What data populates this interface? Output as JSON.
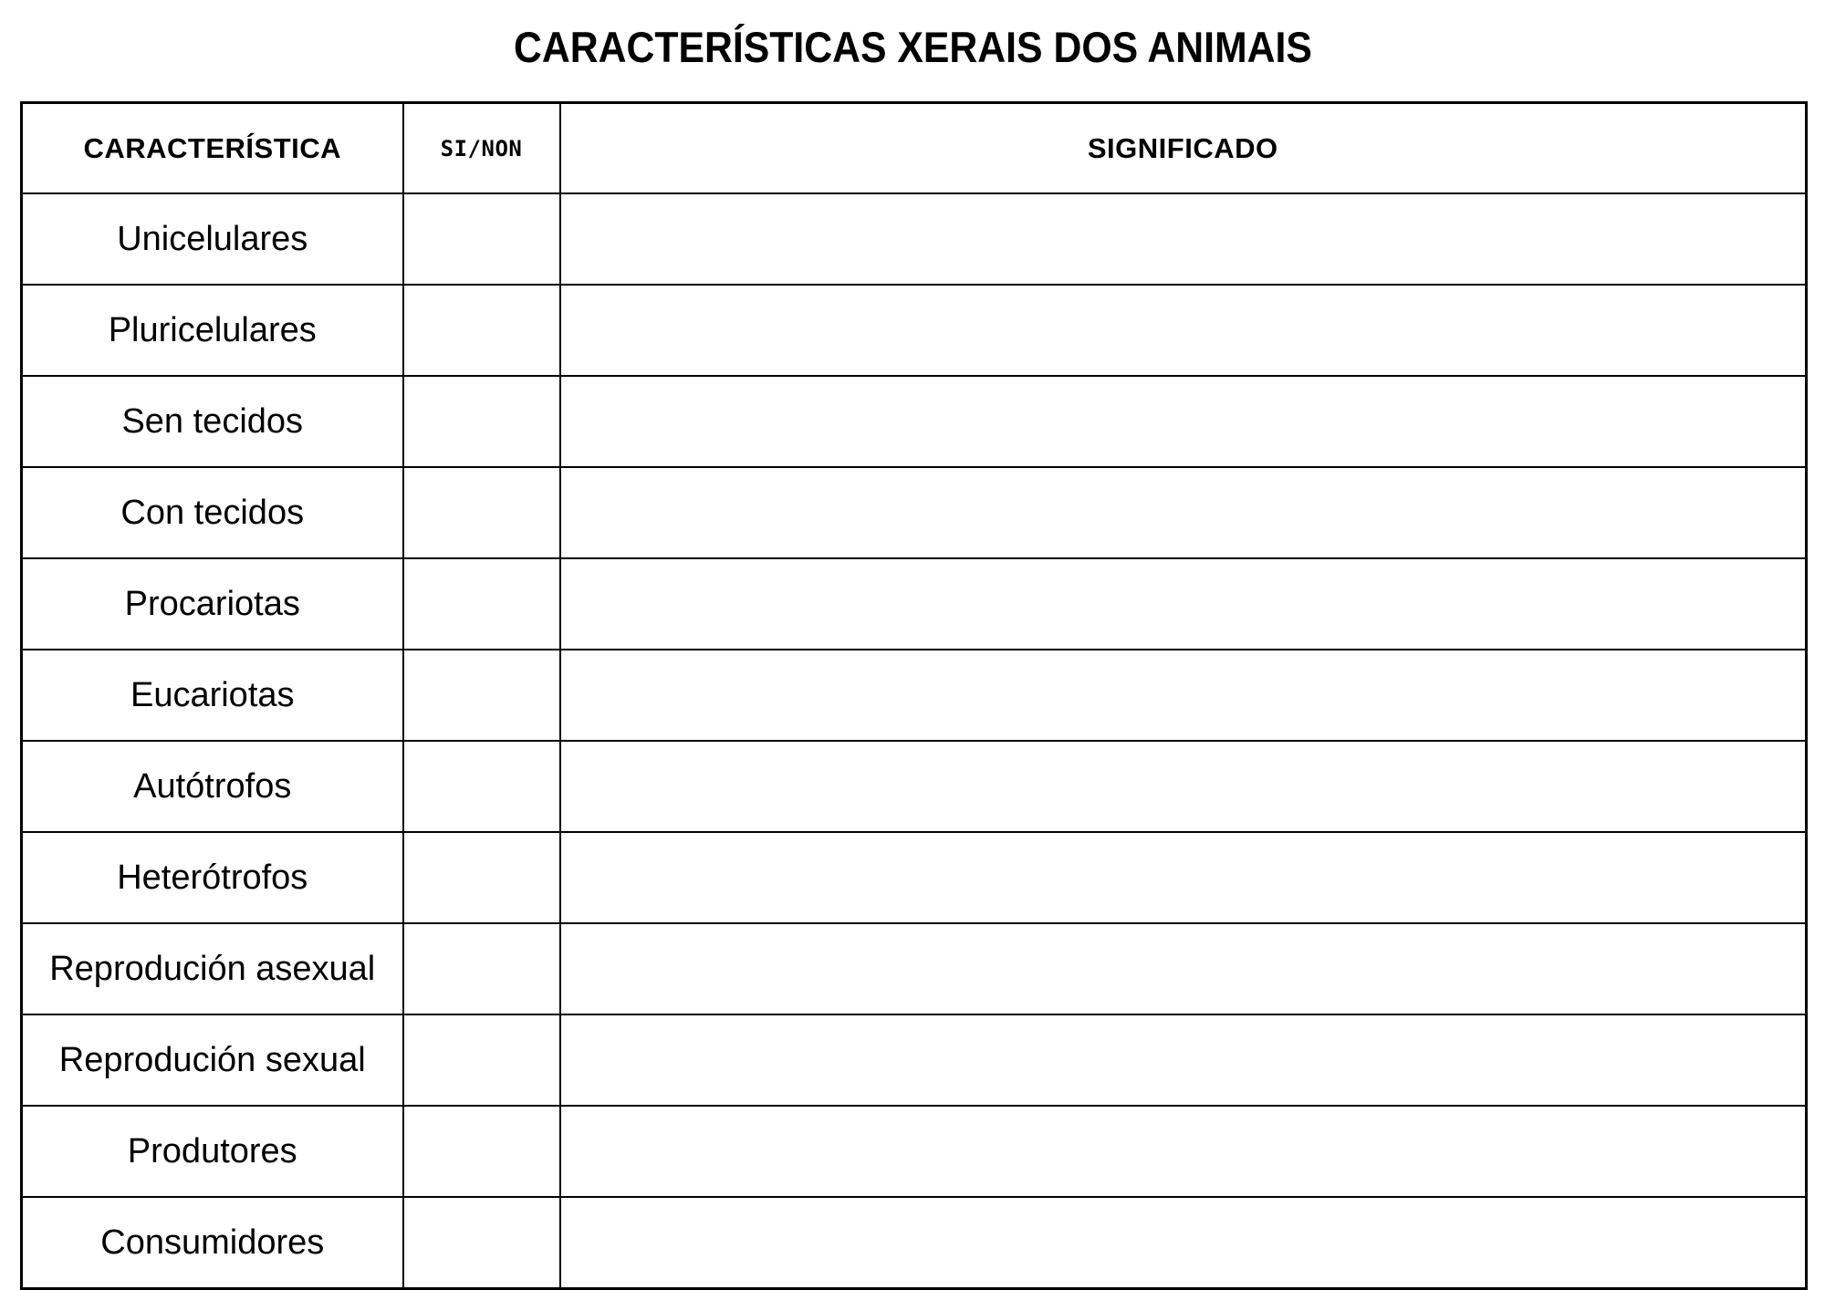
{
  "page": {
    "title": "CARACTERÍSTICAS XERAIS DOS ANIMAIS"
  },
  "table": {
    "headers": {
      "caracteristica": "CARACTERÍSTICA",
      "si_non": "SI/NON",
      "significado": "SIGNIFICADO"
    },
    "rows": [
      {
        "label": "Unicelulares",
        "si_non": "",
        "significado": ""
      },
      {
        "label": "Pluricelulares",
        "si_non": "",
        "significado": ""
      },
      {
        "label": "Sen tecidos",
        "si_non": "",
        "significado": ""
      },
      {
        "label": "Con tecidos",
        "si_non": "",
        "significado": ""
      },
      {
        "label": "Procariotas",
        "si_non": "",
        "significado": ""
      },
      {
        "label": "Eucariotas",
        "si_non": "",
        "significado": ""
      },
      {
        "label": "Autótrofos",
        "si_non": "",
        "significado": ""
      },
      {
        "label": "Heterótrofos",
        "si_non": "",
        "significado": ""
      },
      {
        "label": "Reprodución asexual",
        "si_non": "",
        "significado": ""
      },
      {
        "label": "Reprodución sexual",
        "si_non": "",
        "significado": ""
      },
      {
        "label": "Produtores",
        "si_non": "",
        "significado": ""
      },
      {
        "label": "Consumidores",
        "si_non": "",
        "significado": ""
      }
    ]
  },
  "colors": {
    "text": "#000000",
    "border": "#000000",
    "background": "#ffffff"
  }
}
